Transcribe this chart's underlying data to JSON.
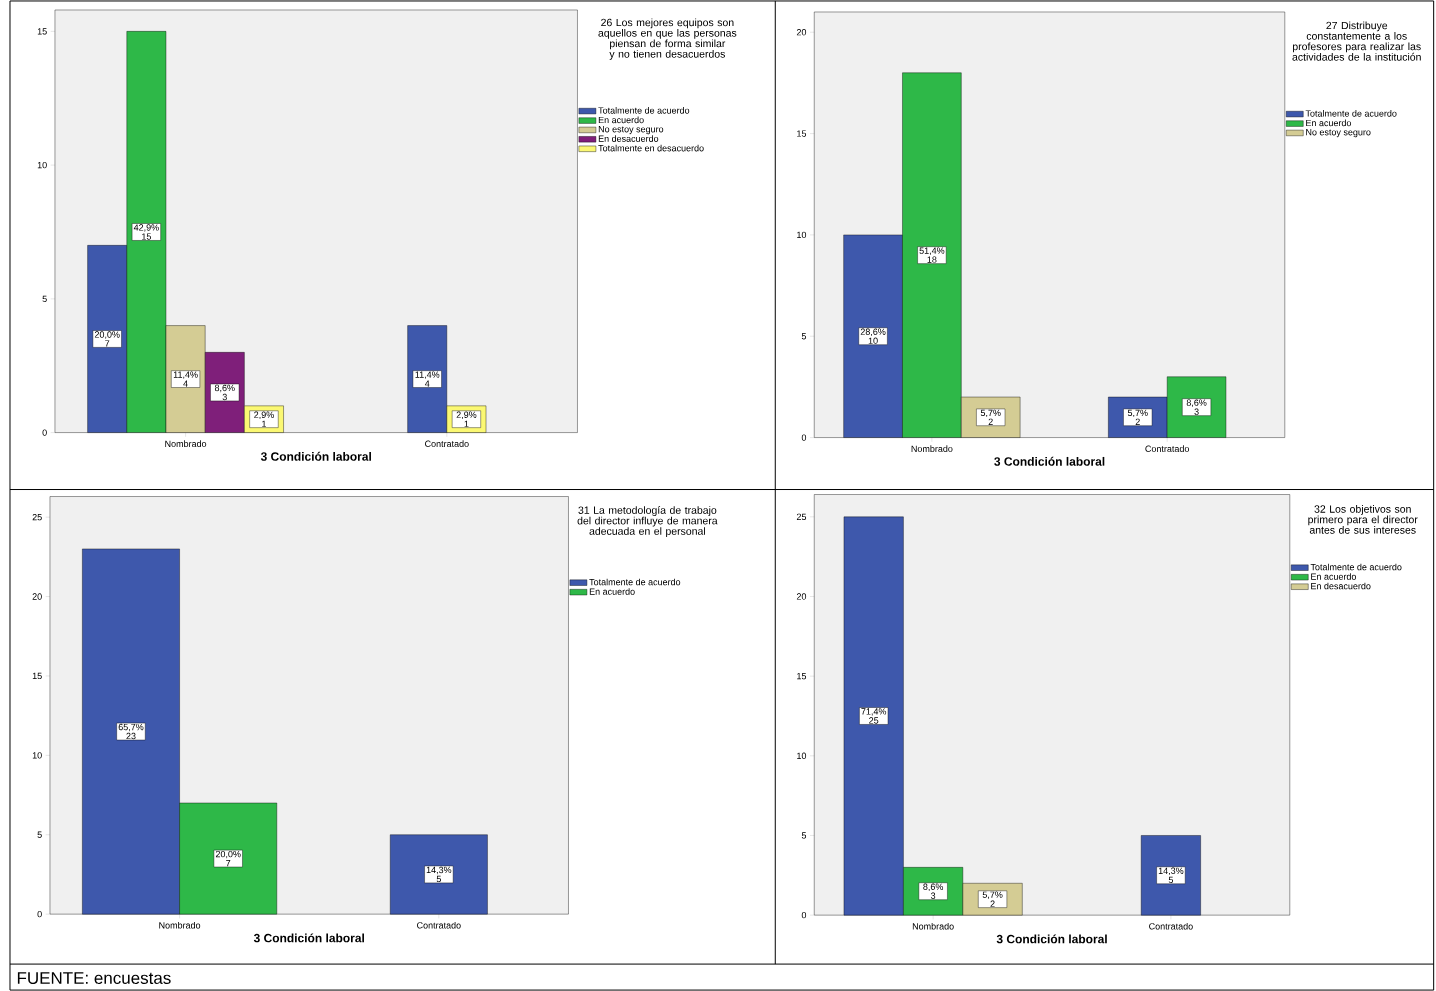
{
  "chart_data": [
    {
      "type": "bar",
      "legend_title": "26 Los mejores equipos son aquellos en que las personas piensan de forma similar y no tienen desacuerdos",
      "xlabel": "3 Condición laboral",
      "categories": [
        "Nombrado",
        "Contratado"
      ],
      "ylim": [
        0,
        15.8
      ],
      "yticks": [
        0,
        5,
        10,
        15
      ],
      "legend": "right",
      "series": [
        {
          "name": "Totalmente de acuerdo",
          "color": "#3e58ac",
          "values": [
            7,
            4
          ],
          "value_labels": [
            "20,0% 7",
            "11,4% 4"
          ]
        },
        {
          "name": "En acuerdo",
          "color": "#2eb848",
          "values": [
            15,
            null
          ],
          "value_labels": [
            "42,9% 15",
            null
          ]
        },
        {
          "name": "No estoy seguro",
          "color": "#d4cc94",
          "values": [
            4,
            null
          ],
          "value_labels": [
            "11,4% 4",
            null
          ]
        },
        {
          "name": "En desacuerdo",
          "color": "#7f1f7a",
          "values": [
            3,
            null
          ],
          "value_labels": [
            "8,6% 3",
            null
          ]
        },
        {
          "name": "Totalmente en desacuerdo",
          "color": "#fbf873",
          "values": [
            1,
            1
          ],
          "value_labels": [
            "2,9% 1",
            "2,9% 1"
          ]
        }
      ]
    },
    {
      "type": "bar",
      "legend_title": "27 Distribuye constantemente a los profesores para realizar las actividades de la institución",
      "xlabel": "3 Condición laboral",
      "categories": [
        "Nombrado",
        "Contratado"
      ],
      "ylim": [
        0,
        21
      ],
      "yticks": [
        0,
        5,
        10,
        15,
        20
      ],
      "legend": "right",
      "series": [
        {
          "name": "Totalmente de acuerdo",
          "color": "#3e58ac",
          "values": [
            10,
            2
          ],
          "value_labels": [
            "28,6% 10",
            "5,7% 2"
          ]
        },
        {
          "name": "En acuerdo",
          "color": "#2eb848",
          "values": [
            18,
            3
          ],
          "value_labels": [
            "51,4% 18",
            "8,6% 3"
          ]
        },
        {
          "name": "No estoy seguro",
          "color": "#d4cc94",
          "values": [
            2,
            null
          ],
          "value_labels": [
            "5,7% 2",
            null
          ]
        }
      ]
    },
    {
      "type": "bar",
      "legend_title": "31 La metodología de trabajo del director influye de manera adecuada en el personal",
      "xlabel": "3 Condición laboral",
      "categories": [
        "Nombrado",
        "Contratado"
      ],
      "ylim": [
        0,
        26.3
      ],
      "yticks": [
        0,
        5,
        10,
        15,
        20,
        25
      ],
      "legend": "right",
      "series": [
        {
          "name": "Totalmente de acuerdo",
          "color": "#3e58ac",
          "values": [
            23,
            5
          ],
          "value_labels": [
            "65,7% 23",
            "14,3% 5"
          ]
        },
        {
          "name": "En acuerdo",
          "color": "#2eb848",
          "values": [
            7,
            null
          ],
          "value_labels": [
            "20,0% 7",
            null
          ]
        }
      ]
    },
    {
      "type": "bar",
      "legend_title": "32 Los objetivos son primero para el director antes de sus intereses",
      "xlabel": "3 Condición laboral",
      "categories": [
        "Nombrado",
        "Contratado"
      ],
      "ylim": [
        0,
        26.4
      ],
      "yticks": [
        0,
        5,
        10,
        15,
        20,
        25
      ],
      "legend": "right",
      "annotations": [
        "FUENTE: encuestas"
      ],
      "series": [
        {
          "name": "Totalmente de acuerdo",
          "color": "#3e58ac",
          "values": [
            25,
            5
          ],
          "value_labels": [
            "71,4% 25",
            "14,3% 5"
          ]
        },
        {
          "name": "En acuerdo",
          "color": "#2eb848",
          "values": [
            3,
            null
          ],
          "value_labels": [
            "8,6% 3",
            null
          ]
        },
        {
          "name": "En desacuerdo",
          "color": "#d4cc94",
          "values": [
            2,
            null
          ],
          "value_labels": [
            "5,7% 2",
            null
          ]
        }
      ]
    }
  ]
}
